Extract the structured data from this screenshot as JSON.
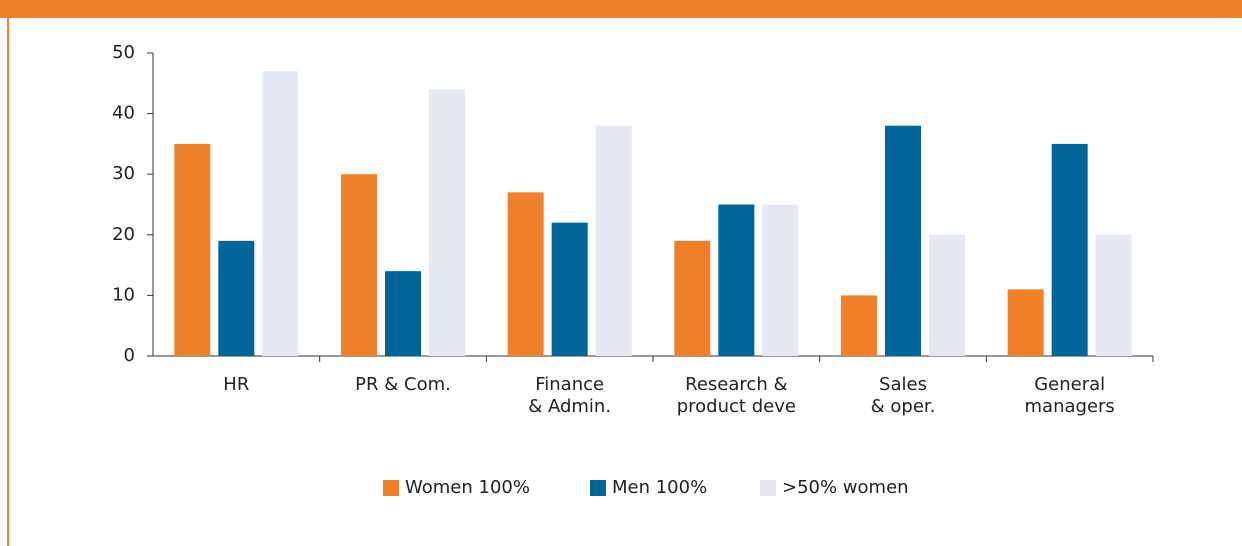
{
  "chart_data": {
    "type": "bar",
    "categories": [
      "HR",
      "PR & Com.",
      "Finance\n& Admin.",
      "Research &\nproduct deve",
      "Sales\n& oper.",
      "General\nmanagers"
    ],
    "series": [
      {
        "name": "Women 100%",
        "color": "#f0812a",
        "values": [
          35,
          30,
          27,
          19,
          10,
          11
        ]
      },
      {
        "name": "Men 100%",
        "color": "#00669a",
        "values": [
          19,
          14,
          22,
          25,
          38,
          35
        ]
      },
      {
        "name": ">50% women",
        "color": "#e6e9f2",
        "values": [
          47,
          44,
          38,
          25,
          20,
          20
        ]
      }
    ],
    "ylim": [
      0,
      50
    ],
    "yticks": [
      0,
      10,
      20,
      30,
      40,
      50
    ],
    "grid": false
  }
}
